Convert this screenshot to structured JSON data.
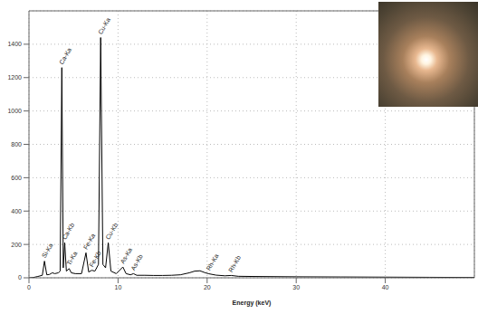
{
  "chart_data": {
    "type": "line",
    "x_label": "Energy (keV)",
    "color": "#000000",
    "grid": true,
    "xlim": [
      0,
      50
    ],
    "ylim": [
      0,
      1600
    ],
    "xticks": [
      0,
      10,
      20,
      30,
      40
    ],
    "yticks": [
      0,
      200,
      400,
      600,
      800,
      1000,
      1200,
      1400
    ],
    "x": [
      0,
      0.5,
      1.0,
      1.5,
      1.74,
      2.0,
      2.3,
      2.62,
      2.9,
      3.3,
      3.5,
      3.69,
      3.85,
      4.01,
      4.2,
      4.51,
      4.75,
      5.2,
      5.9,
      6.4,
      6.7,
      7.06,
      7.4,
      7.8,
      8.05,
      8.3,
      8.6,
      8.9,
      9.2,
      9.8,
      10.54,
      10.9,
      11.4,
      11.73,
      12.1,
      13,
      14,
      15,
      16,
      17,
      18,
      18.6,
      19.2,
      19.8,
      20.2,
      21,
      22,
      22.7,
      23.5,
      25,
      30,
      35,
      40,
      45,
      50
    ],
    "values": [
      0,
      2,
      8,
      15,
      100,
      18,
      20,
      30,
      25,
      30,
      40,
      1260,
      60,
      210,
      40,
      55,
      30,
      25,
      25,
      150,
      35,
      45,
      40,
      80,
      1440,
      80,
      60,
      210,
      40,
      25,
      65,
      25,
      18,
      25,
      15,
      15,
      14,
      14,
      15,
      18,
      30,
      40,
      42,
      30,
      24,
      16,
      12,
      14,
      9,
      8,
      6,
      5,
      4,
      3,
      2
    ],
    "annotations": [
      {
        "text": "Si-Ka",
        "x": 1.74,
        "y": 100
      },
      {
        "text": "Ca-Ka",
        "x": 3.69,
        "y": 1260
      },
      {
        "text": "Ca-Kb",
        "x": 4.01,
        "y": 210
      },
      {
        "text": "Ti-Ka",
        "x": 4.51,
        "y": 55
      },
      {
        "text": "Fe-Ka",
        "x": 6.4,
        "y": 150
      },
      {
        "text": "Fe-Kb",
        "x": 7.06,
        "y": 45
      },
      {
        "text": "Cu-Ka",
        "x": 8.05,
        "y": 1440
      },
      {
        "text": "Cu-Kb",
        "x": 8.9,
        "y": 210
      },
      {
        "text": "As-Ka",
        "x": 10.54,
        "y": 65
      },
      {
        "text": "As-Kb",
        "x": 11.73,
        "y": 25
      },
      {
        "text": "Rh-Ka",
        "x": 20.2,
        "y": 24
      },
      {
        "text": "Rh-Kb",
        "x": 22.7,
        "y": 14
      }
    ]
  }
}
